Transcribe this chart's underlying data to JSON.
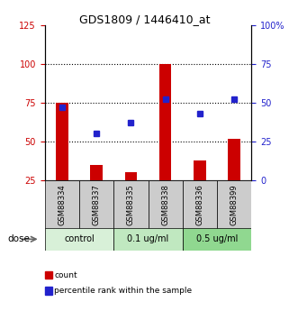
{
  "title": "GDS1809 / 1446410_at",
  "samples": [
    "GSM88334",
    "GSM88337",
    "GSM88335",
    "GSM88338",
    "GSM88336",
    "GSM88399"
  ],
  "bar_values": [
    75,
    35,
    30,
    100,
    38,
    52
  ],
  "dot_values": [
    47,
    30,
    37,
    52,
    43,
    52
  ],
  "bar_color": "#cc0000",
  "dot_color": "#2222cc",
  "left_ylim": [
    25,
    125
  ],
  "left_yticks": [
    25,
    50,
    75,
    100,
    125
  ],
  "right_ylim": [
    0,
    100
  ],
  "right_yticks": [
    0,
    25,
    50,
    75,
    100
  ],
  "right_yticklabels": [
    "0",
    "25",
    "50",
    "75",
    "100%"
  ],
  "hlines": [
    100,
    75,
    50
  ],
  "groups": [
    {
      "label": "control",
      "span": [
        0,
        2
      ],
      "color": "#d8f0d8"
    },
    {
      "label": "0.1 ug/ml",
      "span": [
        2,
        4
      ],
      "color": "#c0e8c0"
    },
    {
      "label": "0.5 ug/ml",
      "span": [
        4,
        6
      ],
      "color": "#a0d8a0"
    }
  ],
  "dose_label": "dose",
  "legend_items": [
    {
      "label": "count",
      "color": "#cc0000"
    },
    {
      "label": "percentile rank within the sample",
      "color": "#2222cc"
    }
  ],
  "sample_bg_color": "#cccccc",
  "bar_bottom": 25,
  "bar_width": 0.35
}
